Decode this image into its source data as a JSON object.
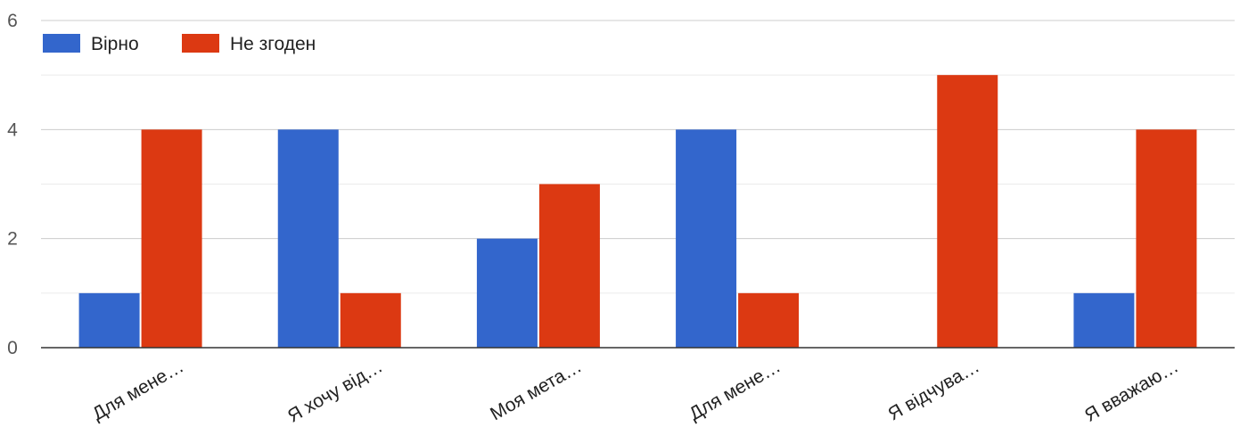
{
  "chart_data": {
    "type": "bar",
    "categories": [
      "Для мене…",
      "Я хочу від…",
      "Моя мета…",
      "Для мене…",
      "Я відчува…",
      "Я вважаю…"
    ],
    "series": [
      {
        "name": "Вірно",
        "color": "#3366cc",
        "values": [
          1,
          4,
          2,
          4,
          0,
          1
        ]
      },
      {
        "name": "Не згоден",
        "color": "#dc3912",
        "values": [
          4,
          1,
          3,
          1,
          5,
          4
        ]
      }
    ],
    "ylim": [
      0,
      6
    ],
    "yticks": [
      0,
      2,
      4,
      6
    ],
    "minor_gridlines": true,
    "legend_position": "top-left",
    "xlabel": "",
    "ylabel": ""
  }
}
